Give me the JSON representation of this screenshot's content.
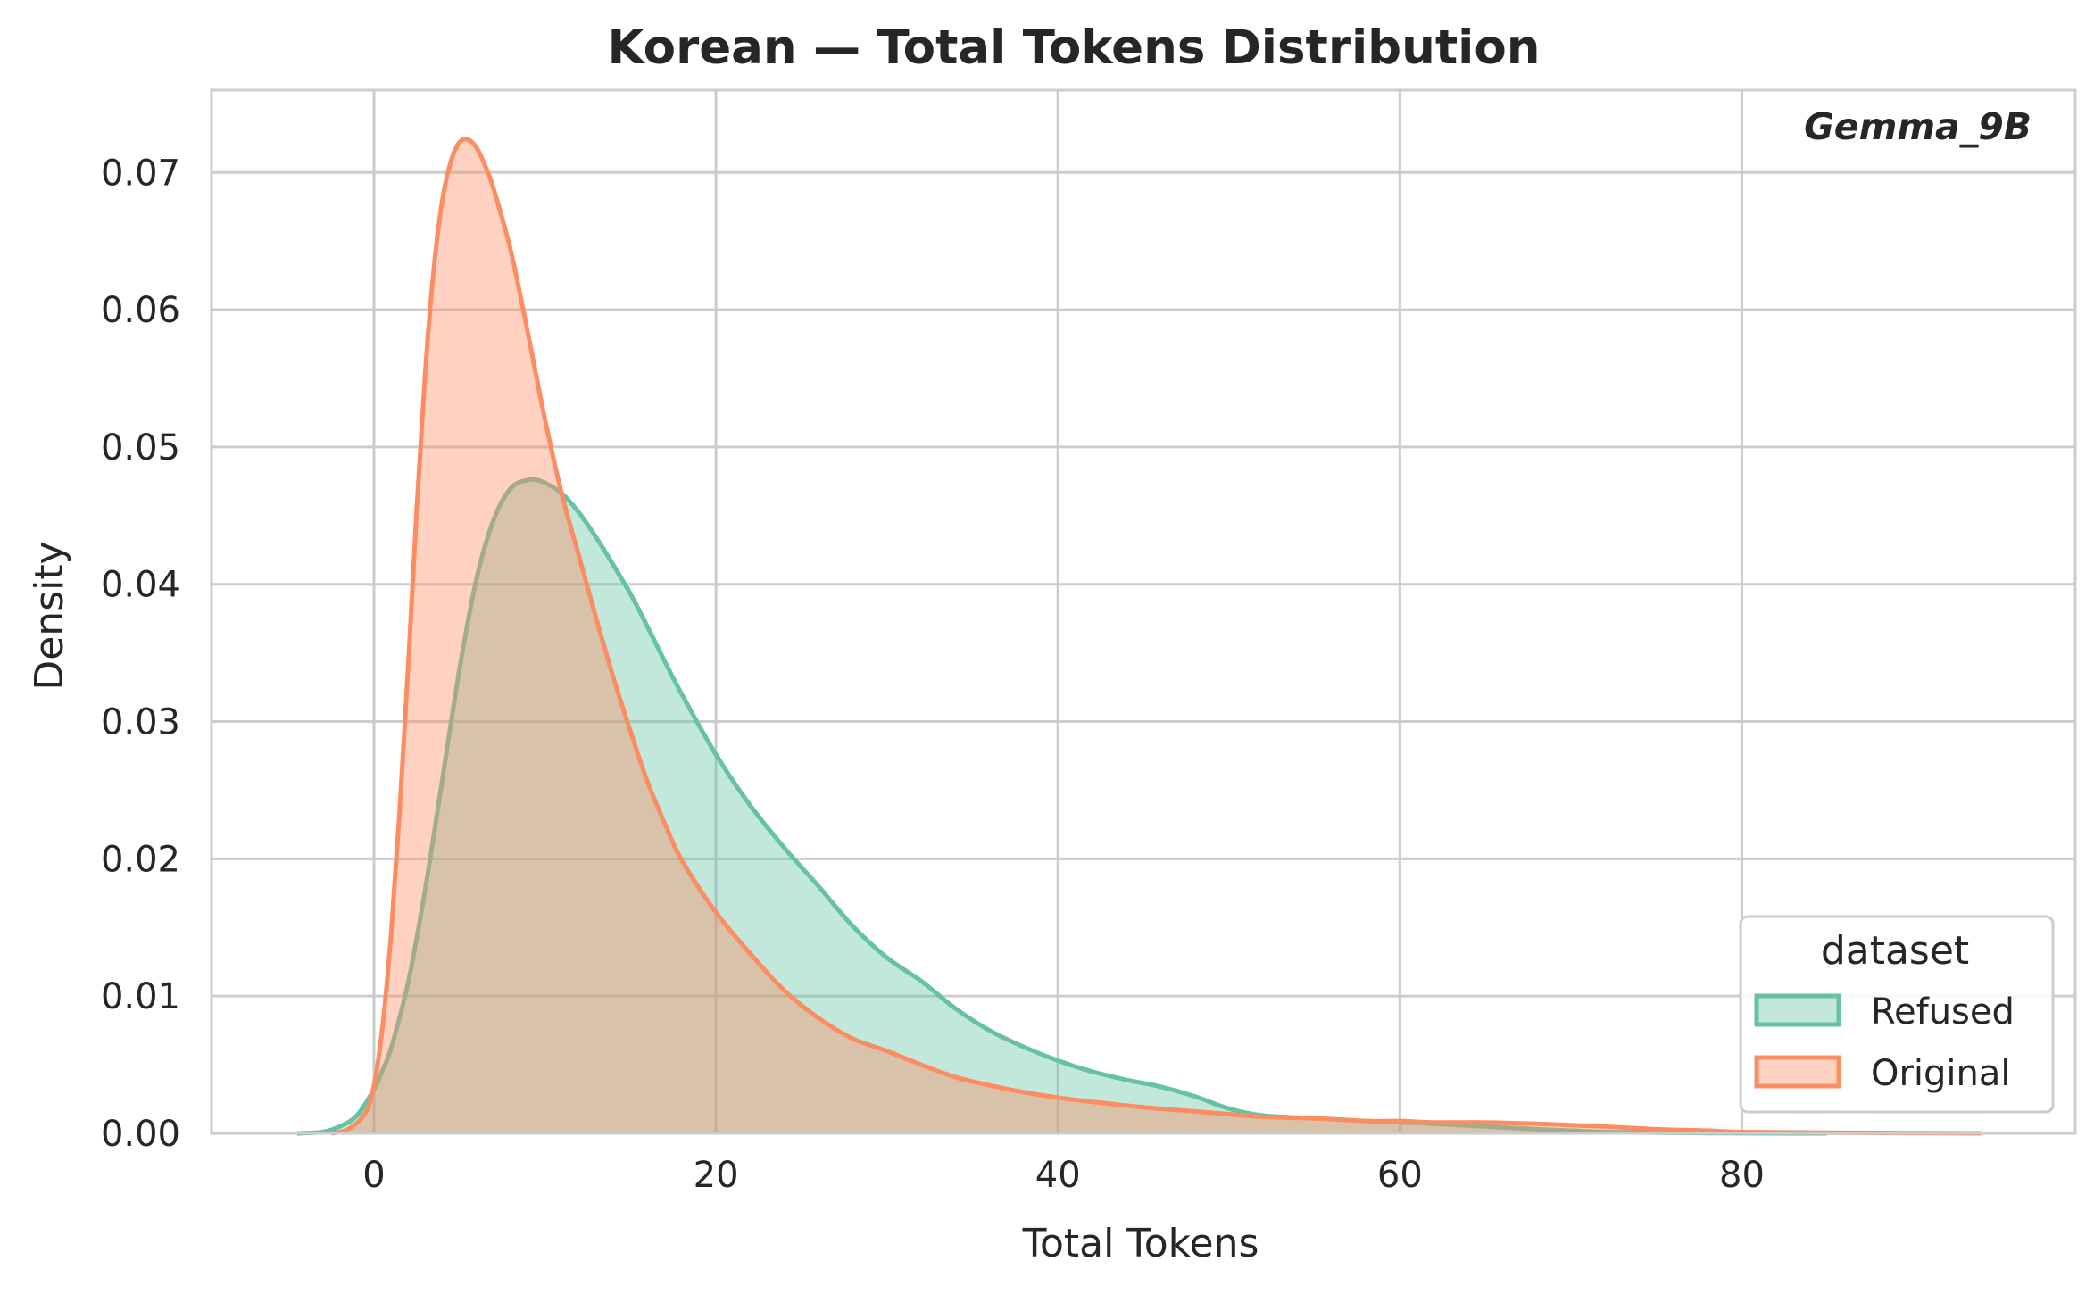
{
  "chart_data": {
    "type": "area",
    "title": "Korean — Total Tokens Distribution",
    "annotation": "Gemma_9B",
    "xlabel": "Total Tokens",
    "ylabel": "Density",
    "xlim": [
      -9.5,
      99.5
    ],
    "ylim": [
      0,
      0.076
    ],
    "x_ticks": [
      0,
      20,
      40,
      60,
      80
    ],
    "x_tick_labels": [
      "0",
      "20",
      "40",
      "60",
      "80"
    ],
    "y_ticks": [
      0,
      0.01,
      0.02,
      0.03,
      0.04,
      0.05,
      0.06,
      0.07
    ],
    "y_tick_labels": [
      "0.00",
      "0.01",
      "0.02",
      "0.03",
      "0.04",
      "0.05",
      "0.06",
      "0.07"
    ],
    "grid": true,
    "legend": {
      "title": "dataset",
      "placement": "lower-right"
    },
    "series": [
      {
        "name": "Refused",
        "color": "#66c2a5",
        "x": [
          -4.5,
          -3,
          -2,
          -1,
          0,
          0.5,
          1,
          2,
          3,
          4,
          5,
          6,
          7,
          8,
          9,
          9.5,
          10,
          11,
          12,
          13,
          14,
          15,
          16,
          17,
          18,
          20,
          22,
          24,
          26,
          28,
          30,
          32,
          34,
          36,
          38,
          40,
          42,
          44,
          46,
          48,
          50,
          52,
          55,
          58,
          60,
          62,
          65,
          68,
          70,
          72,
          75,
          78,
          80,
          82,
          85
        ],
        "y": [
          0,
          0.0001,
          0.0005,
          0.0013,
          0.0032,
          0.0046,
          0.0062,
          0.011,
          0.0178,
          0.0258,
          0.0338,
          0.0404,
          0.0447,
          0.047,
          0.0476,
          0.0476,
          0.0474,
          0.0466,
          0.0452,
          0.0434,
          0.0414,
          0.0393,
          0.0369,
          0.0344,
          0.032,
          0.0276,
          0.0239,
          0.0208,
          0.018,
          0.0151,
          0.0128,
          0.0111,
          0.0091,
          0.0075,
          0.0063,
          0.0053,
          0.0045,
          0.0039,
          0.0034,
          0.0027,
          0.0018,
          0.0013,
          0.0011,
          0.0009,
          0.0008,
          0.0007,
          0.0005,
          0.0003,
          0.0002,
          0.0001,
          5e-05,
          2e-05,
          1e-05,
          0,
          0
        ]
      },
      {
        "name": "Original",
        "color": "#fc8d62",
        "x": [
          -2.5,
          -1.5,
          -0.5,
          0,
          0.5,
          1,
          1.5,
          2,
          2.5,
          3,
          3.5,
          4,
          4.5,
          5,
          5.5,
          6,
          6.5,
          7,
          8,
          9,
          10,
          11,
          12,
          13,
          14,
          15,
          16,
          17,
          18,
          20,
          22,
          24,
          26,
          28,
          30,
          32,
          34,
          36,
          38,
          40,
          42,
          45,
          48,
          50,
          52,
          55,
          58,
          60,
          62,
          65,
          68,
          70,
          72,
          75,
          78,
          80,
          85,
          90,
          94
        ],
        "y": [
          0,
          0.0003,
          0.0015,
          0.0035,
          0.0078,
          0.0145,
          0.0235,
          0.034,
          0.0455,
          0.0555,
          0.063,
          0.068,
          0.0708,
          0.0722,
          0.0724,
          0.0718,
          0.0705,
          0.0688,
          0.0643,
          0.0583,
          0.052,
          0.0465,
          0.042,
          0.0375,
          0.0332,
          0.0293,
          0.0256,
          0.0226,
          0.0199,
          0.0161,
          0.0131,
          0.0104,
          0.0084,
          0.0069,
          0.006,
          0.005,
          0.0041,
          0.0035,
          0.003,
          0.0026,
          0.0023,
          0.0019,
          0.0016,
          0.0014,
          0.0012,
          0.0011,
          0.0009,
          0.0009,
          0.0008,
          0.0008,
          0.0007,
          0.0006,
          0.0005,
          0.0003,
          0.0002,
          0.0001,
          5e-05,
          2e-05,
          0
        ]
      }
    ]
  }
}
